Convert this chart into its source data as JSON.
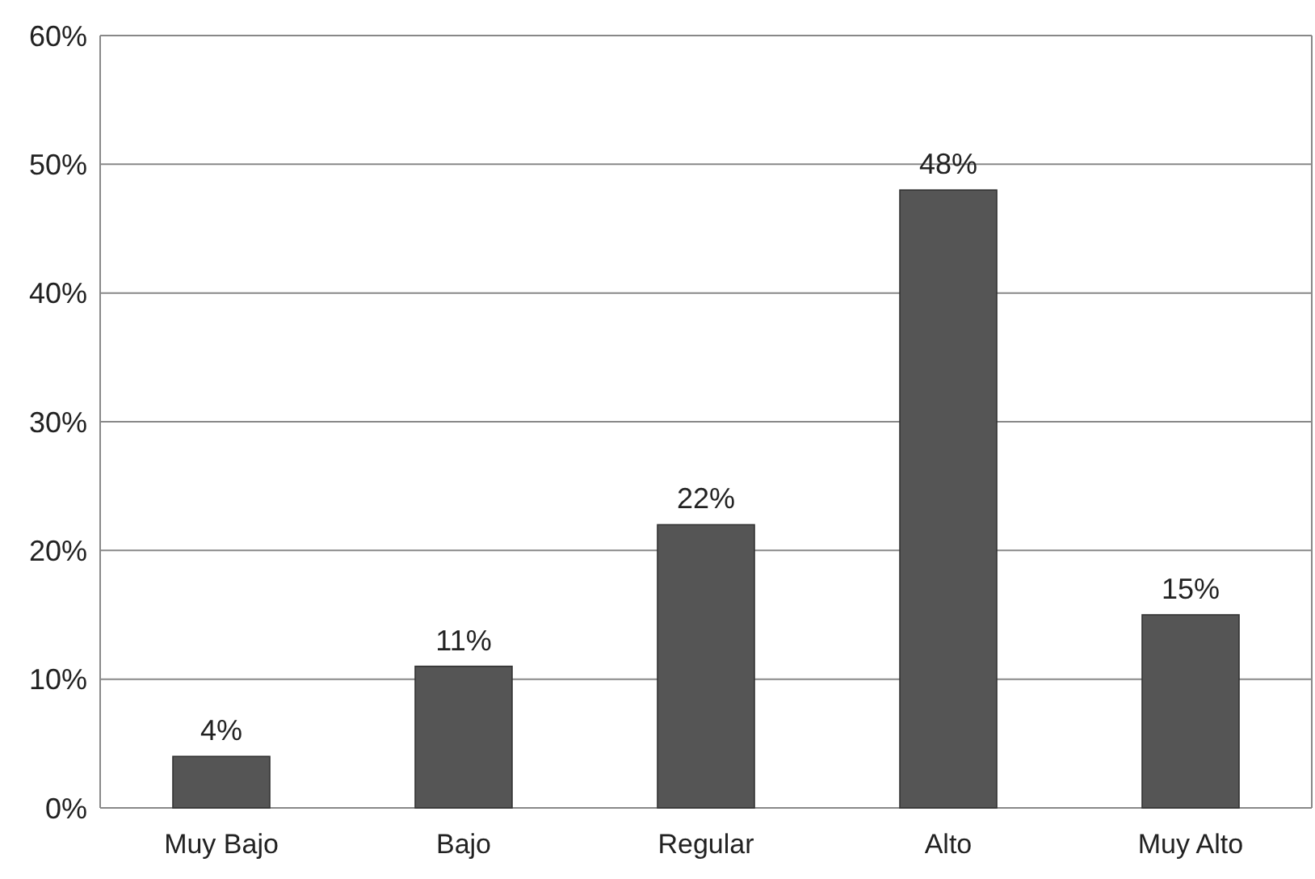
{
  "chart_data": {
    "type": "bar",
    "categories": [
      "Muy Bajo",
      "Bajo",
      "Regular",
      "Alto",
      "Muy Alto"
    ],
    "values": [
      4,
      11,
      22,
      48,
      15
    ],
    "value_labels": [
      "4%",
      "11%",
      "22%",
      "48%",
      "15%"
    ],
    "color": "#555555",
    "ylim": [
      0,
      60
    ],
    "yticks": [
      {
        "value": 0,
        "label": "0%"
      },
      {
        "value": 10,
        "label": "10%"
      },
      {
        "value": 20,
        "label": "20%"
      },
      {
        "value": 30,
        "label": "30%"
      },
      {
        "value": 40,
        "label": "40%"
      },
      {
        "value": 50,
        "label": "50%"
      },
      {
        "value": 60,
        "label": "60%"
      }
    ],
    "grid": "y"
  }
}
